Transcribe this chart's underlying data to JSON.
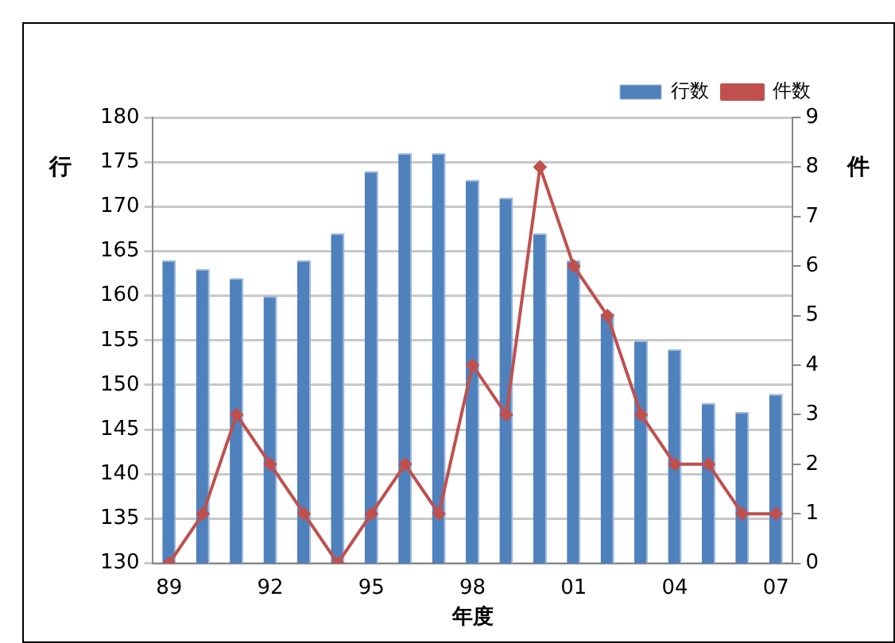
{
  "chart_data": {
    "type": "bar",
    "categories": [
      "89",
      null,
      null,
      "92",
      null,
      null,
      "95",
      null,
      null,
      "98",
      null,
      null,
      "01",
      null,
      null,
      "04",
      null,
      null,
      "07"
    ],
    "series": [
      {
        "name": "行数",
        "color": "#4f81bd",
        "values": [
          164,
          163,
          162,
          160,
          164,
          167,
          174,
          176,
          176,
          173,
          171,
          167,
          164,
          158,
          155,
          154,
          148,
          147,
          149
        ]
      },
      {
        "name": "件数",
        "type": "line",
        "axis": "y2",
        "color": "#c0504d",
        "marker": "diamond",
        "values": [
          0,
          1,
          3,
          2,
          1,
          0,
          1,
          2,
          1,
          4,
          3,
          8,
          6,
          5,
          3,
          2,
          2,
          1,
          1
        ]
      }
    ],
    "xlabel": "年度",
    "ylabel": "行",
    "y2label": "件",
    "ylim": [
      130,
      180
    ],
    "yticks": [
      130,
      135,
      140,
      145,
      150,
      155,
      160,
      165,
      170,
      175,
      180
    ],
    "y2lim": [
      0,
      9
    ],
    "y2ticks": [
      0,
      1,
      2,
      3,
      4,
      5,
      6,
      7,
      8,
      9
    ],
    "grid": "y",
    "legend": "top right"
  }
}
